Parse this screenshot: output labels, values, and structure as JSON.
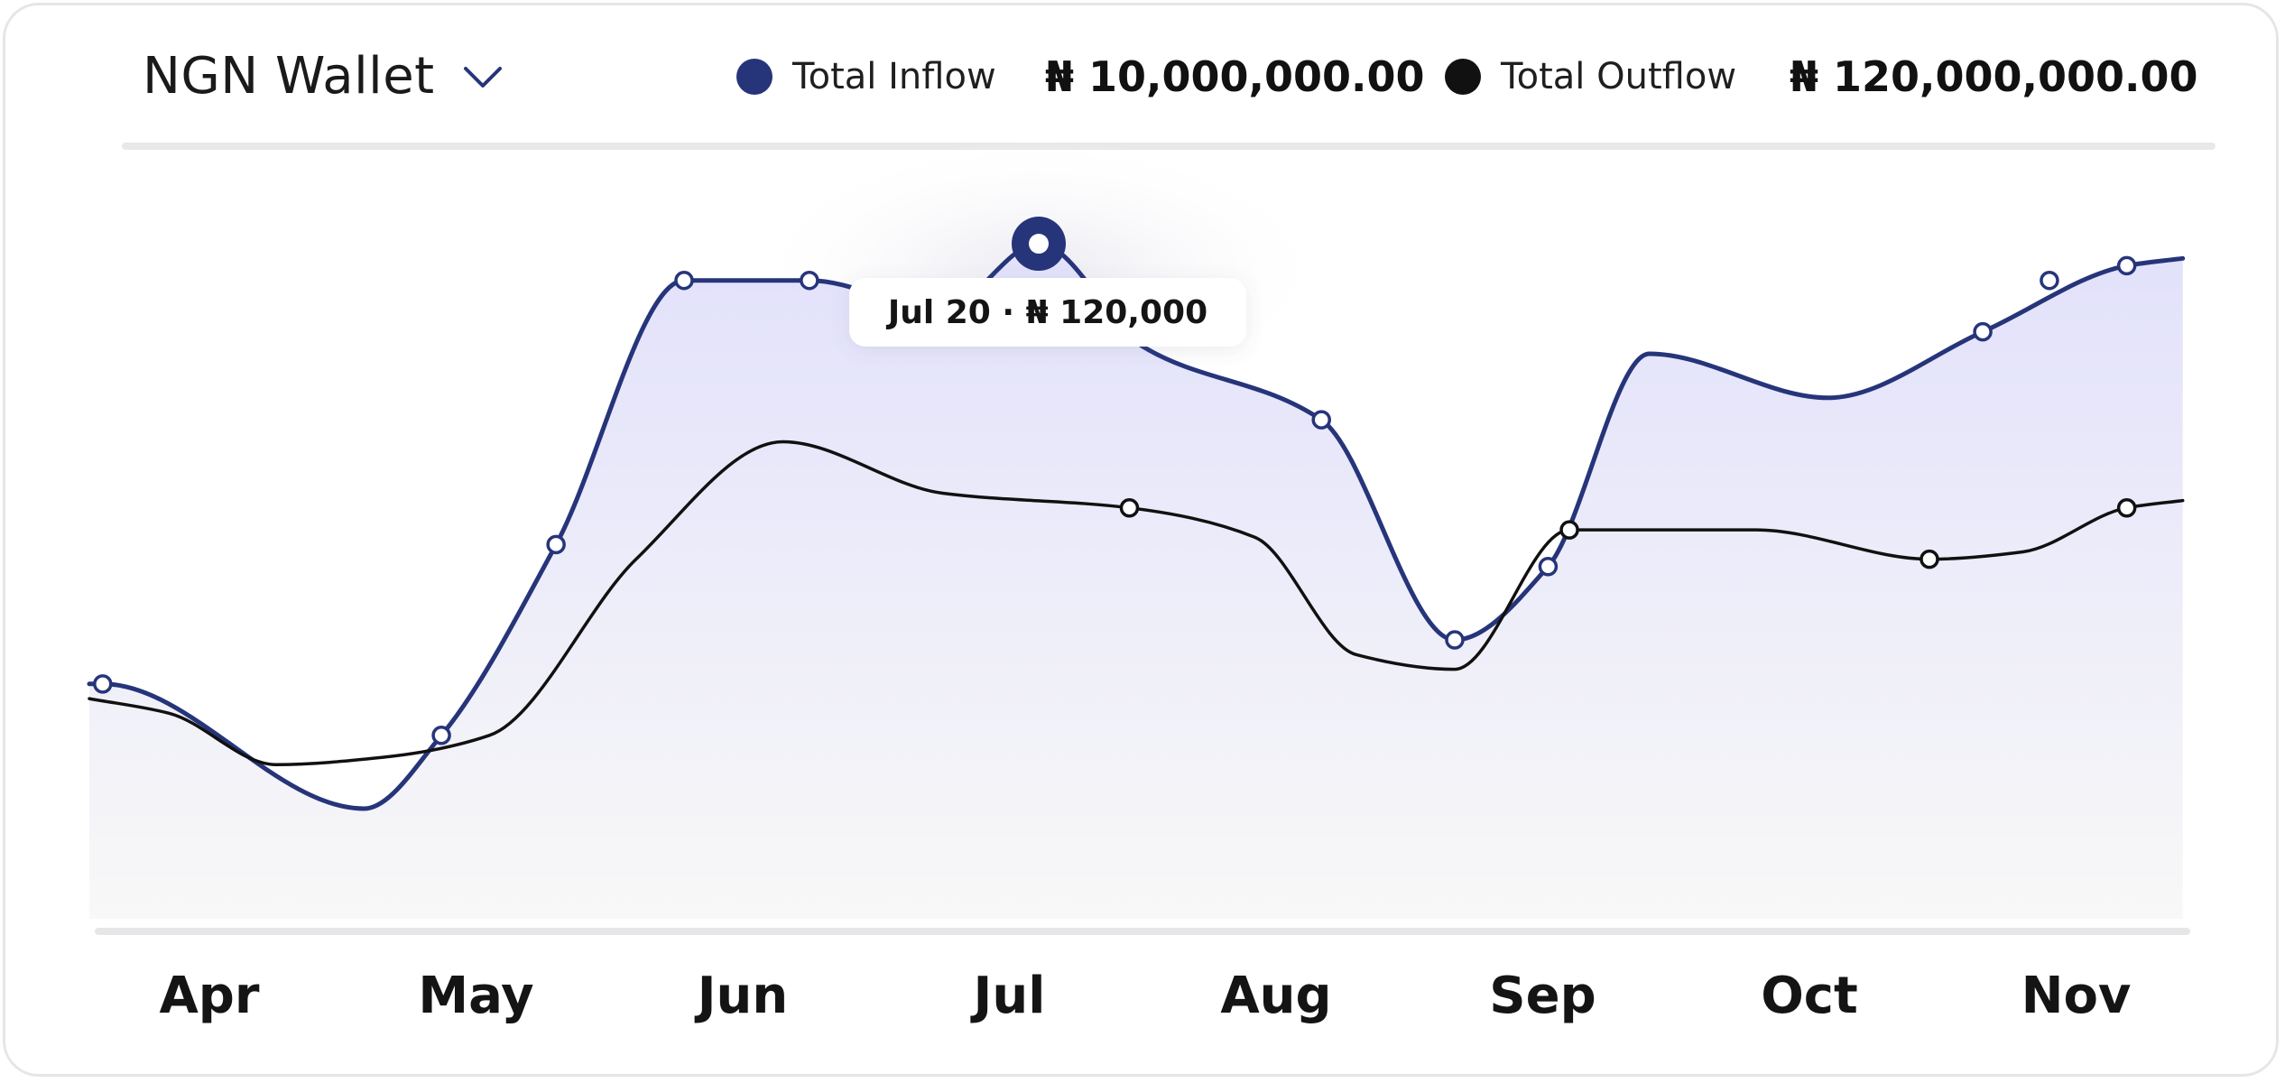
{
  "wallet": {
    "label": "NGN Wallet"
  },
  "legend": [
    {
      "label": "Total Inflow",
      "value": "₦ 10,000,000.00",
      "color": "#26357a"
    },
    {
      "label": "Total Outflow",
      "value": "₦ 120,000,000.00",
      "color": "#111111"
    }
  ],
  "colors": {
    "inflow": "#26357a",
    "outflow": "#111111",
    "area_top": "#e2e1fb",
    "area_bottom": "#f8f8f8",
    "axis": "#e6e6e8"
  },
  "icons": {
    "wallet_dropdown": "chevron-down-icon"
  },
  "chart_data": {
    "type": "line",
    "x_ticks": [
      "Apr",
      "May",
      "Jun",
      "Jul",
      "Aug",
      "Sep",
      "Oct",
      "Nov"
    ],
    "x_range": [
      -0.45,
      7.4
    ],
    "y_range": [
      0,
      100
    ],
    "grid": false,
    "legend": "top-right",
    "series": [
      {
        "name": "Total Inflow",
        "area": true,
        "points": [
          [
            -0.45,
            32
          ],
          [
            -0.4,
            32
          ],
          [
            0.58,
            15
          ],
          [
            0.87,
            25
          ],
          [
            1.3,
            51
          ],
          [
            1.78,
            87
          ],
          [
            2.25,
            87
          ],
          [
            2.75,
            83
          ],
          [
            3.11,
            92
          ],
          [
            3.5,
            78
          ],
          [
            4.17,
            68
          ],
          [
            4.67,
            38
          ],
          [
            5.02,
            48
          ],
          [
            5.4,
            77
          ],
          [
            6.07,
            71
          ],
          [
            6.65,
            80
          ],
          [
            7.19,
            89
          ],
          [
            7.4,
            90
          ]
        ],
        "markers": [
          [
            -0.4,
            32
          ],
          [
            0.87,
            25
          ],
          [
            1.3,
            51
          ],
          [
            1.78,
            87
          ],
          [
            2.25,
            87
          ],
          [
            4.17,
            68
          ],
          [
            4.67,
            38
          ],
          [
            5.02,
            48
          ],
          [
            6.65,
            80
          ],
          [
            6.9,
            87
          ],
          [
            7.19,
            89
          ]
        ]
      },
      {
        "name": "Total Outflow",
        "area": false,
        "points": [
          [
            -0.45,
            30
          ],
          [
            -0.15,
            28
          ],
          [
            0.25,
            21
          ],
          [
            0.65,
            22
          ],
          [
            1.05,
            25
          ],
          [
            1.6,
            49
          ],
          [
            2.15,
            65
          ],
          [
            2.75,
            58
          ],
          [
            3.45,
            56
          ],
          [
            3.92,
            52
          ],
          [
            4.3,
            36
          ],
          [
            4.67,
            34
          ],
          [
            5.1,
            53
          ],
          [
            5.8,
            53
          ],
          [
            6.45,
            49
          ],
          [
            6.8,
            50
          ],
          [
            7.19,
            56
          ],
          [
            7.4,
            57
          ]
        ],
        "markers": [
          [
            3.45,
            56
          ],
          [
            5.1,
            53
          ],
          [
            6.45,
            49
          ],
          [
            7.19,
            56
          ]
        ]
      }
    ],
    "highlight": {
      "series": "Total Inflow",
      "x": 3.11,
      "y": 92,
      "label": "Jul 20 · ₦ 120,000"
    }
  }
}
